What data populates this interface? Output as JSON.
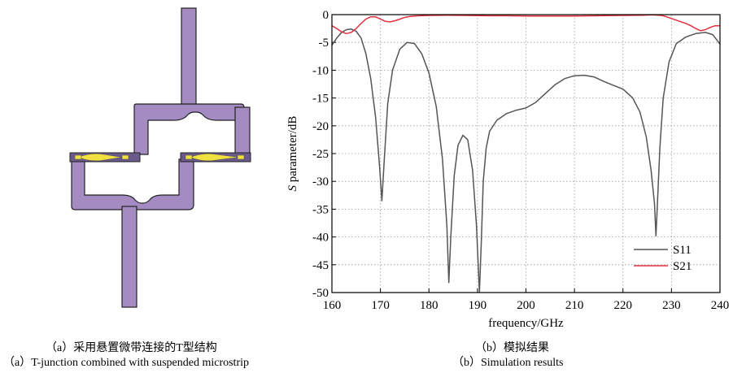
{
  "captions": {
    "a_cn": "（a）采用悬置微带连接的T型结构",
    "a_en": "（a）T-junction combined with suspended microstrip",
    "b_cn": "（b）模拟结果",
    "b_en": "（b）Simulation results"
  },
  "colors": {
    "trace": "#a48bc2",
    "trace_outline": "#222222",
    "transition": "#6a5a8c",
    "probe": "#f0e040",
    "s11": "#555555",
    "s21": "#e03040",
    "grid": "#9a9a9a"
  },
  "chart_data": {
    "type": "line",
    "xlabel": "frequency/GHz",
    "ylabel_italic": "S",
    "ylabel_rest": " parameter/dB",
    "xlim": [
      160,
      240
    ],
    "ylim": [
      -50,
      0
    ],
    "xticks": [
      160,
      170,
      180,
      190,
      200,
      210,
      220,
      230,
      240
    ],
    "yticks": [
      0,
      -5,
      -10,
      -15,
      -20,
      -25,
      -30,
      -35,
      -40,
      -45,
      -50
    ],
    "grid": true,
    "legend_position": "bottom-right",
    "series": [
      {
        "name": "S11",
        "x": [
          160,
          161,
          162,
          163,
          164,
          165,
          166,
          167,
          168,
          169,
          169.8,
          170.3,
          170.8,
          171.5,
          172.5,
          174,
          175.5,
          177,
          178.5,
          180,
          181.5,
          182.8,
          183.7,
          184.1,
          184.5,
          185.2,
          186,
          187,
          188,
          189,
          189.8,
          190.4,
          190.8,
          191.2,
          191.8,
          192.5,
          194,
          196,
          198,
          200,
          202,
          204,
          206,
          208,
          210,
          212,
          214,
          216,
          218,
          220,
          222,
          223.5,
          224.8,
          225.8,
          226.5,
          226.8,
          227.1,
          227.6,
          228.3,
          229.5,
          231,
          233,
          235,
          237,
          238.5,
          240
        ],
        "values": [
          -5.5,
          -4.2,
          -3.2,
          -2.7,
          -2.6,
          -3.0,
          -4.2,
          -7.0,
          -11.5,
          -18.5,
          -27,
          -33.5,
          -26,
          -16,
          -10,
          -6.2,
          -5.0,
          -5.2,
          -7.0,
          -10.5,
          -16.5,
          -26,
          -38,
          -48.2,
          -40,
          -29,
          -23.5,
          -21.7,
          -22.5,
          -28,
          -38,
          -50,
          -41,
          -30,
          -24,
          -21,
          -19,
          -17.8,
          -17.2,
          -16.8,
          -15.8,
          -14.2,
          -12.6,
          -11.5,
          -11.0,
          -10.9,
          -11.2,
          -12.0,
          -12.7,
          -13.4,
          -15,
          -17.5,
          -22,
          -28,
          -34,
          -39.8,
          -34,
          -24,
          -15,
          -8.5,
          -5.2,
          -4,
          -3.4,
          -3.2,
          -3.6,
          -5.3
        ]
      },
      {
        "name": "S21",
        "x": [
          160,
          161,
          162,
          163,
          164,
          165,
          166,
          167,
          168,
          169,
          170,
          171,
          172,
          173,
          174,
          175,
          176,
          177,
          178,
          180,
          184,
          188,
          192,
          196,
          200,
          205,
          210,
          215,
          220,
          224,
          226,
          228,
          229,
          230,
          231,
          232,
          233,
          234,
          235,
          236,
          237,
          238,
          239,
          240
        ],
        "values": [
          -2.0,
          -2.5,
          -3.1,
          -3.4,
          -3.2,
          -2.5,
          -1.6,
          -0.8,
          -0.4,
          -0.4,
          -0.8,
          -1.2,
          -1.3,
          -1.1,
          -0.8,
          -0.5,
          -0.35,
          -0.25,
          -0.2,
          -0.15,
          -0.12,
          -0.15,
          -0.2,
          -0.2,
          -0.25,
          -0.25,
          -0.25,
          -0.2,
          -0.15,
          -0.1,
          -0.05,
          -0.15,
          -0.4,
          -0.7,
          -1.0,
          -1.3,
          -1.6,
          -2.0,
          -2.5,
          -2.9,
          -2.7,
          -2.3,
          -2.0,
          -2.0
        ]
      }
    ]
  }
}
